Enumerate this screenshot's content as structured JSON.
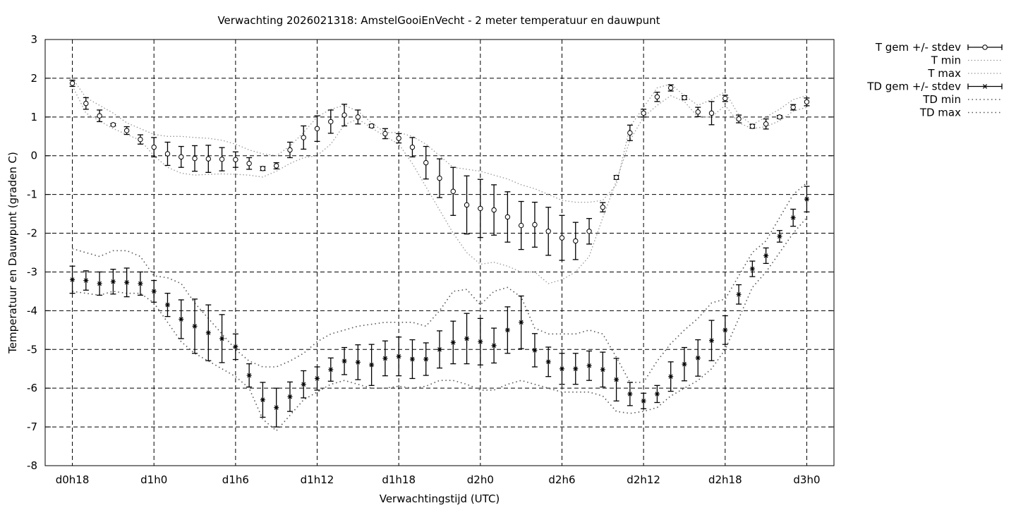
{
  "chart_data": {
    "type": "line",
    "title": "Verwachting 2026021318: AmstelGooiEnVecht - 2 meter temperatuur en dauwpunt",
    "xlabel": "Verwachtingstijd (UTC)",
    "ylabel": "Temperatuur en Dauwpunt (graden C)",
    "ylim": [
      -8,
      3
    ],
    "yticks": [
      "3",
      "2",
      "1",
      "0",
      "-1",
      "-2",
      "-3",
      "-4",
      "-5",
      "-6",
      "-7",
      "-8"
    ],
    "xticks": [
      "d0h18",
      "d1h0",
      "d1h6",
      "d1h12",
      "d1h18",
      "d2h0",
      "d2h6",
      "d2h12",
      "d2h18",
      "d3h0"
    ],
    "xlim_hours": [
      16,
      74
    ],
    "grid": true,
    "legend_position": "top-right-outside",
    "x_hours": [
      18,
      19,
      20,
      21,
      22,
      23,
      24,
      25,
      26,
      27,
      28,
      29,
      30,
      31,
      32,
      33,
      34,
      35,
      36,
      37,
      38,
      39,
      40,
      41,
      42,
      43,
      44,
      45,
      46,
      47,
      48,
      49,
      50,
      51,
      52,
      53,
      54,
      55,
      56,
      57,
      58,
      59,
      60,
      61,
      62,
      63,
      64,
      65,
      66,
      67,
      68,
      69,
      70,
      71,
      72
    ],
    "series": [
      {
        "name": "T gem +/- stdev",
        "marker": "circle",
        "mean": [
          1.87,
          1.35,
          1.03,
          0.8,
          0.65,
          0.42,
          0.22,
          0.05,
          -0.03,
          -0.07,
          -0.08,
          -0.09,
          -0.1,
          -0.2,
          -0.33,
          -0.26,
          0.15,
          0.47,
          0.7,
          0.88,
          1.05,
          1.0,
          0.77,
          0.57,
          0.45,
          0.22,
          -0.18,
          -0.58,
          -0.92,
          -1.27,
          -1.36,
          -1.4,
          -1.58,
          -1.8,
          -1.78,
          -1.95,
          -2.12,
          -2.2,
          -1.95,
          -1.33,
          -0.56,
          0.59,
          1.1,
          1.52,
          1.75,
          1.5,
          1.13,
          1.1,
          1.48,
          0.95,
          0.76,
          0.82,
          1.0,
          1.25,
          1.39
        ],
        "stdev": [
          0.08,
          0.15,
          0.15,
          0.03,
          0.1,
          0.12,
          0.25,
          0.3,
          0.27,
          0.33,
          0.35,
          0.3,
          0.2,
          0.15,
          0.05,
          0.08,
          0.2,
          0.3,
          0.33,
          0.3,
          0.28,
          0.18,
          0.04,
          0.13,
          0.12,
          0.25,
          0.42,
          0.5,
          0.62,
          0.75,
          0.75,
          0.65,
          0.65,
          0.62,
          0.58,
          0.62,
          0.58,
          0.48,
          0.33,
          0.12,
          0.05,
          0.2,
          0.1,
          0.12,
          0.08,
          0.05,
          0.12,
          0.3,
          0.08,
          0.1,
          0.05,
          0.13,
          0.04,
          0.07,
          0.1
        ]
      },
      {
        "name": "T min",
        "values": [
          1.8,
          1.1,
          0.9,
          0.7,
          0.55,
          0.4,
          0.0,
          -0.3,
          -0.45,
          -0.5,
          -0.48,
          -0.47,
          -0.48,
          -0.5,
          -0.55,
          -0.4,
          -0.2,
          -0.05,
          0.0,
          0.3,
          0.8,
          0.95,
          0.72,
          0.5,
          0.3,
          -0.2,
          -0.8,
          -1.4,
          -2.0,
          -2.5,
          -2.8,
          -2.75,
          -2.85,
          -3.0,
          -3.0,
          -3.3,
          -3.2,
          -3.0,
          -2.6,
          -1.6,
          -0.65,
          0.4,
          1.0,
          1.3,
          1.55,
          1.4,
          1.0,
          1.0,
          1.3,
          0.85,
          0.7,
          0.75,
          0.9,
          1.15,
          1.25
        ]
      },
      {
        "name": "T max",
        "values": [
          2.0,
          1.5,
          1.3,
          1.1,
          0.85,
          0.7,
          0.55,
          0.5,
          0.5,
          0.47,
          0.45,
          0.4,
          0.3,
          0.15,
          0.05,
          0.0,
          0.25,
          0.6,
          1.0,
          1.2,
          1.3,
          1.15,
          0.85,
          0.6,
          0.6,
          0.5,
          0.3,
          0.0,
          -0.3,
          -0.35,
          -0.4,
          -0.5,
          -0.6,
          -0.75,
          -0.85,
          -1.0,
          -1.15,
          -1.2,
          -1.2,
          -1.15,
          -0.75,
          0.75,
          1.25,
          1.75,
          1.85,
          1.55,
          1.3,
          1.45,
          1.65,
          1.05,
          0.8,
          1.0,
          1.2,
          1.45,
          1.55
        ]
      },
      {
        "name": "TD gem +/- stdev",
        "marker": "asterisk",
        "mean": [
          -3.2,
          -3.22,
          -3.3,
          -3.25,
          -3.27,
          -3.3,
          -3.5,
          -3.85,
          -4.22,
          -4.4,
          -4.57,
          -4.72,
          -4.93,
          -5.67,
          -6.3,
          -6.5,
          -6.22,
          -5.9,
          -5.75,
          -5.52,
          -5.3,
          -5.33,
          -5.4,
          -5.23,
          -5.18,
          -5.25,
          -5.25,
          -5.0,
          -4.82,
          -4.72,
          -4.8,
          -4.9,
          -4.5,
          -4.3,
          -5.02,
          -5.32,
          -5.5,
          -5.5,
          -5.42,
          -5.52,
          -5.78,
          -6.15,
          -6.33,
          -6.15,
          -5.7,
          -5.38,
          -5.22,
          -4.77,
          -4.5,
          -3.58,
          -2.92,
          -2.58,
          -2.08,
          -1.6,
          -1.12
        ],
        "stdev": [
          0.35,
          0.25,
          0.3,
          0.32,
          0.37,
          0.3,
          0.28,
          0.3,
          0.5,
          0.7,
          0.72,
          0.62,
          0.33,
          0.3,
          0.45,
          0.5,
          0.38,
          0.35,
          0.3,
          0.3,
          0.35,
          0.45,
          0.53,
          0.45,
          0.5,
          0.5,
          0.42,
          0.48,
          0.55,
          0.65,
          0.6,
          0.45,
          0.6,
          0.68,
          0.43,
          0.38,
          0.4,
          0.4,
          0.38,
          0.45,
          0.55,
          0.3,
          0.2,
          0.22,
          0.38,
          0.43,
          0.47,
          0.52,
          0.37,
          0.25,
          0.2,
          0.2,
          0.15,
          0.22,
          0.33
        ]
      },
      {
        "name": "TD min",
        "values": [
          -3.5,
          -3.55,
          -3.6,
          -3.5,
          -3.55,
          -3.55,
          -3.8,
          -4.3,
          -4.8,
          -5.1,
          -5.3,
          -5.5,
          -5.7,
          -6.0,
          -6.8,
          -7.1,
          -6.7,
          -6.3,
          -6.1,
          -5.9,
          -5.8,
          -5.9,
          -6.0,
          -6.0,
          -5.95,
          -6.0,
          -5.95,
          -5.8,
          -5.8,
          -5.9,
          -6.05,
          -6.05,
          -5.9,
          -5.8,
          -5.9,
          -6.0,
          -6.1,
          -6.1,
          -6.1,
          -6.2,
          -6.6,
          -6.65,
          -6.6,
          -6.5,
          -6.2,
          -6.0,
          -5.8,
          -5.5,
          -5.0,
          -4.2,
          -3.4,
          -3.0,
          -2.5,
          -2.0,
          -1.6
        ]
      },
      {
        "name": "TD max",
        "values": [
          -2.4,
          -2.5,
          -2.6,
          -2.45,
          -2.45,
          -2.6,
          -3.1,
          -3.15,
          -3.3,
          -3.8,
          -4.2,
          -4.6,
          -5.0,
          -5.3,
          -5.45,
          -5.45,
          -5.3,
          -5.1,
          -4.8,
          -4.6,
          -4.5,
          -4.4,
          -4.35,
          -4.3,
          -4.3,
          -4.3,
          -4.4,
          -4.0,
          -3.5,
          -3.45,
          -3.85,
          -3.5,
          -3.4,
          -3.65,
          -4.45,
          -4.6,
          -4.6,
          -4.6,
          -4.5,
          -4.6,
          -5.2,
          -5.85,
          -5.85,
          -5.3,
          -4.85,
          -4.5,
          -4.2,
          -3.8,
          -3.7,
          -3.1,
          -2.5,
          -2.2,
          -1.6,
          -1.0,
          -0.7
        ]
      }
    ]
  }
}
